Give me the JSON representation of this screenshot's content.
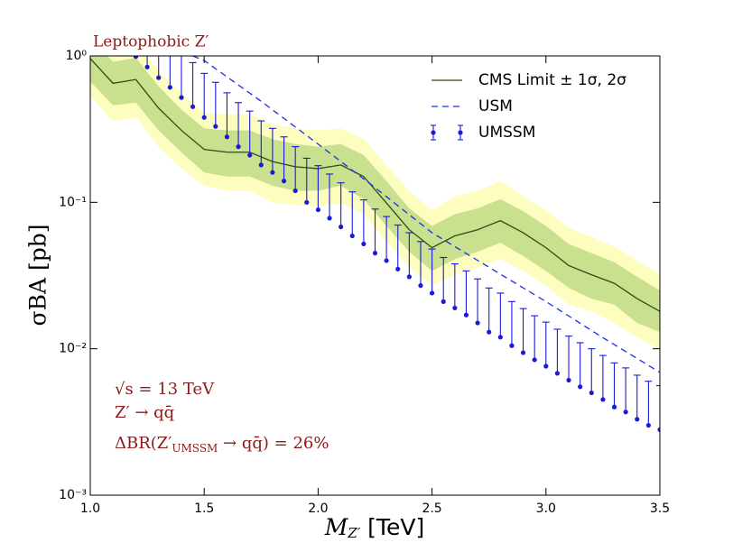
{
  "chart_data": {
    "type": "line",
    "title": "Leptophobic Z′",
    "y_label": "σBA [pb]",
    "x_label": {
      "parts": [
        "M",
        "Z′",
        " [TeV]"
      ]
    },
    "annotations": [
      {
        "parts": [
          "√s = 13 TeV"
        ]
      },
      {
        "parts": [
          "Z′ → qq̄"
        ]
      },
      {
        "parts": [
          "ΔBR(Z′",
          "UMSSM",
          " → qq̄) = 26%"
        ]
      }
    ],
    "xlim": [
      1.0,
      3.5
    ],
    "xticks": [
      {
        "value": 1,
        "label": "1.0"
      },
      1.5,
      {
        "value": 2,
        "label": "2.0"
      },
      2.5,
      {
        "value": 3,
        "label": "3.0"
      },
      3.5
    ],
    "ylim": [
      0.001,
      1
    ],
    "log_y": true,
    "yticks": [
      {
        "value": 0.001,
        "label": "10⁻³"
      },
      {
        "value": 0.01,
        "label": "10⁻²"
      },
      {
        "value": 0.1,
        "label": "10⁻¹"
      },
      {
        "value": 1,
        "label": "10⁰"
      }
    ],
    "legend": "upper right",
    "series": [
      {
        "name": "CMS Limit ± 1σ, 2σ",
        "type": "line",
        "color": "#2e4d16",
        "x": [
          1.0,
          1.1,
          1.2,
          1.3,
          1.4,
          1.5,
          1.6,
          1.7,
          1.8,
          1.9,
          2.0,
          2.1,
          2.2,
          2.3,
          2.4,
          2.5,
          2.6,
          2.7,
          2.8,
          2.9,
          3.0,
          3.1,
          3.2,
          3.3,
          3.4,
          3.5
        ],
        "values": [
          0.96,
          0.65,
          0.69,
          0.44,
          0.31,
          0.23,
          0.22,
          0.22,
          0.19,
          0.175,
          0.17,
          0.18,
          0.15,
          0.099,
          0.065,
          0.049,
          0.059,
          0.065,
          0.075,
          0.062,
          0.049,
          0.037,
          0.032,
          0.028,
          0.022,
          0.018
        ],
        "band_1sigma": {
          "color": "#c9e08f",
          "lower": [
            0.67,
            0.46,
            0.48,
            0.31,
            0.22,
            0.16,
            0.15,
            0.15,
            0.13,
            0.12,
            0.12,
            0.13,
            0.105,
            0.069,
            0.046,
            0.034,
            0.041,
            0.046,
            0.053,
            0.043,
            0.034,
            0.026,
            0.022,
            0.02,
            0.015,
            0.013
          ],
          "upper": [
            1.34,
            0.91,
            0.97,
            0.62,
            0.43,
            0.32,
            0.31,
            0.31,
            0.27,
            0.25,
            0.24,
            0.25,
            0.21,
            0.14,
            0.091,
            0.069,
            0.083,
            0.091,
            0.105,
            0.087,
            0.069,
            0.052,
            0.045,
            0.039,
            0.031,
            0.025
          ]
        },
        "band_2sigma": {
          "color": "#fdfdbf",
          "lower": [
            0.53,
            0.36,
            0.38,
            0.24,
            0.17,
            0.13,
            0.12,
            0.12,
            0.1,
            0.096,
            0.094,
            0.099,
            0.083,
            0.054,
            0.036,
            0.027,
            0.032,
            0.036,
            0.041,
            0.034,
            0.027,
            0.02,
            0.018,
            0.015,
            0.012,
            0.0099
          ],
          "upper": [
            1.7,
            1.2,
            1.24,
            0.79,
            0.56,
            0.41,
            0.4,
            0.4,
            0.34,
            0.32,
            0.31,
            0.32,
            0.27,
            0.18,
            0.12,
            0.088,
            0.11,
            0.12,
            0.14,
            0.11,
            0.088,
            0.067,
            0.058,
            0.05,
            0.04,
            0.032
          ]
        }
      },
      {
        "name": "USM",
        "type": "line",
        "style": "dashed",
        "color": "#1a2ee6",
        "x": [
          1.45,
          1.5,
          1.75,
          2.0,
          2.25,
          2.5,
          2.75,
          3.0,
          3.25,
          3.5
        ],
        "values": [
          1.0,
          0.93,
          0.49,
          0.25,
          0.126,
          0.062,
          0.036,
          0.021,
          0.0119,
          0.0069
        ]
      },
      {
        "name": "UMSSM",
        "type": "errorbar",
        "color": "#1a1ad9",
        "x": [
          1.2,
          1.25,
          1.3,
          1.35,
          1.4,
          1.45,
          1.5,
          1.55,
          1.6,
          1.65,
          1.7,
          1.75,
          1.8,
          1.85,
          1.9,
          1.95,
          2.0,
          2.05,
          2.1,
          2.15,
          2.2,
          2.25,
          2.3,
          2.35,
          2.4,
          2.45,
          2.5,
          2.55,
          2.6,
          2.65,
          2.7,
          2.75,
          2.8,
          2.85,
          2.9,
          2.95,
          3.0,
          3.05,
          3.1,
          3.15,
          3.2,
          3.25,
          3.3,
          3.35,
          3.4,
          3.45,
          3.5
        ],
        "values": [
          0.99,
          0.84,
          0.71,
          0.61,
          0.52,
          0.45,
          0.38,
          0.33,
          0.28,
          0.24,
          0.21,
          0.18,
          0.16,
          0.14,
          0.12,
          0.1,
          0.089,
          0.078,
          0.068,
          0.059,
          0.052,
          0.045,
          0.04,
          0.035,
          0.031,
          0.027,
          0.024,
          0.021,
          0.019,
          0.017,
          0.015,
          0.013,
          0.012,
          0.0105,
          0.0094,
          0.0084,
          0.0076,
          0.0068,
          0.0061,
          0.0055,
          0.005,
          0.0045,
          0.004,
          0.0037,
          0.0033,
          0.003,
          0.0028
        ],
        "errors": [
          0.99,
          0.84,
          0.71,
          0.61,
          0.52,
          0.45,
          0.38,
          0.33,
          0.28,
          0.24,
          0.21,
          0.18,
          0.16,
          0.14,
          0.12,
          0.1,
          0.089,
          0.078,
          0.068,
          0.059,
          0.052,
          0.045,
          0.04,
          0.035,
          0.031,
          0.027,
          0.024,
          0.021,
          0.019,
          0.017,
          0.015,
          0.013,
          0.012,
          0.0105,
          0.0094,
          0.0084,
          0.0076,
          0.0068,
          0.0061,
          0.0055,
          0.005,
          0.0045,
          0.004,
          0.0037,
          0.0033,
          0.003,
          0.0028
        ]
      }
    ]
  }
}
